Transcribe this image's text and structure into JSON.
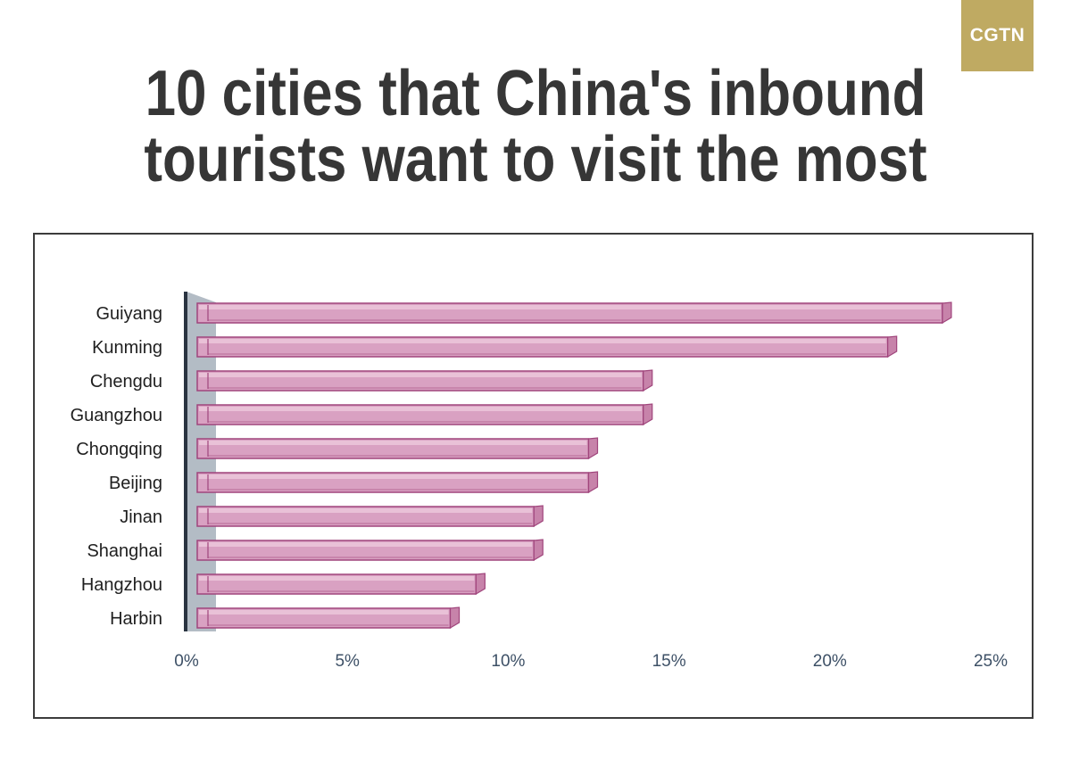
{
  "logo": {
    "text": "CGTN",
    "color": "#bfaa62"
  },
  "title": {
    "line1": "10 cities that China's inbound",
    "line2": "tourists want to visit the most"
  },
  "chart_data": {
    "type": "bar",
    "orientation": "horizontal",
    "categories": [
      "Guiyang",
      "Kunming",
      "Chengdu",
      "Guangzhou",
      "Chongqing",
      "Beijing",
      "Jinan",
      "Shanghai",
      "Hangzhou",
      "Harbin"
    ],
    "values": [
      23.5,
      21.8,
      14.2,
      14.2,
      12.5,
      12.5,
      10.8,
      10.8,
      9.0,
      8.2
    ],
    "x_ticks": [
      "0%",
      "5%",
      "10%",
      "15%",
      "20%",
      "25%"
    ],
    "xlim": [
      0,
      25
    ],
    "grid": false,
    "legend": "none",
    "colors": {
      "bar": "#d9a1c2",
      "bar_edge": "#a0457c",
      "axis_wall": "#b3bcc5",
      "axis_line": "#2a3441"
    }
  }
}
